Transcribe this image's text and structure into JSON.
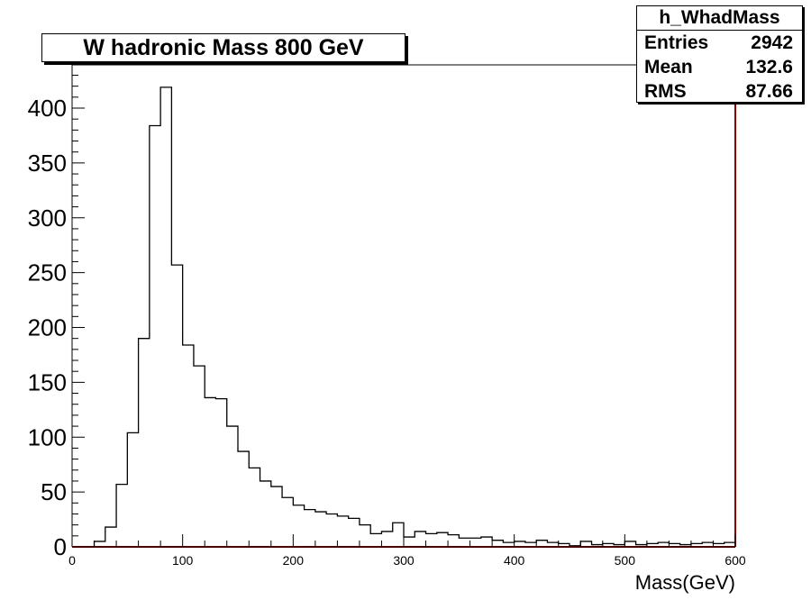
{
  "chart_data": {
    "type": "bar",
    "title": "W hadronic Mass 800 GeV",
    "xlabel": "Mass(GeV)",
    "ylabel": "",
    "xlim": [
      0,
      600
    ],
    "ylim": [
      0,
      440
    ],
    "x_ticks": [
      0,
      100,
      200,
      300,
      400,
      500,
      600
    ],
    "y_ticks": [
      0,
      50,
      100,
      150,
      200,
      250,
      300,
      350,
      400
    ],
    "bin_width": 10,
    "bin_edges_start": 0,
    "values": [
      0,
      0,
      5,
      18,
      57,
      104,
      190,
      384,
      419,
      257,
      184,
      165,
      136,
      135,
      110,
      87,
      72,
      60,
      55,
      45,
      38,
      34,
      32,
      30,
      28,
      26,
      20,
      12,
      14,
      22,
      9,
      14,
      12,
      13,
      11,
      8,
      8,
      9,
      6,
      4,
      5,
      4,
      6,
      4,
      3,
      1,
      5,
      2,
      3,
      2,
      5,
      2,
      3,
      4,
      3,
      2,
      3,
      4,
      3,
      4
    ],
    "grid": false,
    "legend": "none"
  },
  "stats": {
    "name": "h_WhadMass",
    "rows": [
      {
        "label": "Entries",
        "value": "2942"
      },
      {
        "label": "Mean",
        "value": "132.6"
      },
      {
        "label": "RMS",
        "value": "87.66"
      }
    ]
  },
  "colors": {
    "histogram": "#000000",
    "axis": "#000000",
    "frame_right": "#8b0000",
    "baseline": "#8b0000"
  }
}
